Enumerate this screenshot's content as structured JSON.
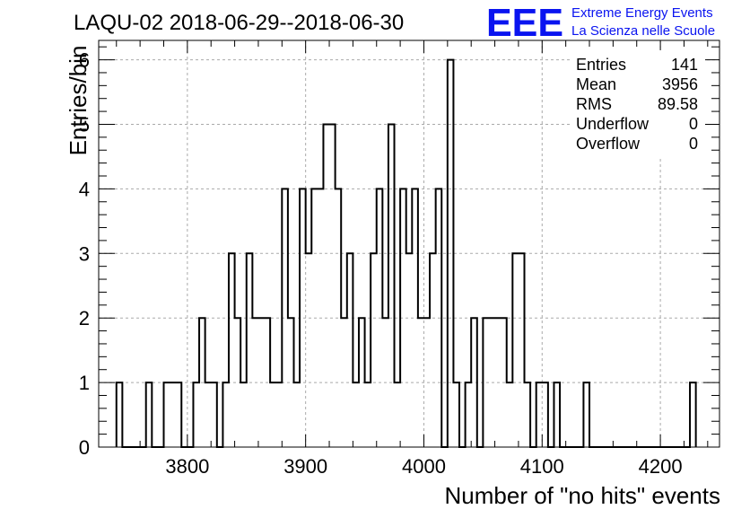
{
  "logo": {
    "letters": "EEE",
    "line1": "Extreme Energy Events",
    "line2": "La Scienza nelle Scuole",
    "color": "#0a14f0"
  },
  "chart_data": {
    "type": "histogram",
    "title": "LAQU-02 2018-06-29--2018-06-30",
    "xlabel": "Number of \"no hits\" events",
    "ylabel": "Entries/bin",
    "xlim": [
      3725,
      4250
    ],
    "ylim": [
      0,
      6.3
    ],
    "bin_start": 3740,
    "bin_width": 5,
    "bin_counts": [
      1,
      0,
      0,
      0,
      0,
      1,
      0,
      0,
      1,
      1,
      1,
      0,
      0,
      1,
      2,
      1,
      1,
      0,
      1,
      3,
      2,
      1,
      3,
      2,
      2,
      2,
      1,
      1,
      4,
      2,
      1,
      4,
      3,
      4,
      4,
      5,
      5,
      4,
      2,
      3,
      1,
      2,
      1,
      3,
      4,
      2,
      5,
      1,
      4,
      3,
      4,
      2,
      2,
      3,
      4,
      0,
      6,
      1,
      0,
      1,
      2,
      0,
      2,
      2,
      2,
      2,
      1,
      3,
      3,
      1,
      0,
      1,
      1,
      0,
      1,
      0,
      0,
      0,
      0,
      1,
      0,
      0,
      0,
      0,
      0,
      0,
      0,
      0,
      0,
      0,
      0,
      0,
      0,
      0,
      0,
      0,
      0,
      1
    ],
    "xticks": [
      3800,
      3900,
      4000,
      4100,
      4200
    ],
    "yticks": [
      0,
      1,
      2,
      3,
      4,
      5,
      6
    ],
    "grid": true,
    "line_color": "#000000",
    "stats": [
      {
        "label": "Entries",
        "value": "141"
      },
      {
        "label": "Mean",
        "value": "3956"
      },
      {
        "label": "RMS",
        "value": "89.58"
      },
      {
        "label": "Underflow",
        "value": "0"
      },
      {
        "label": "Overflow",
        "value": "0"
      }
    ]
  }
}
